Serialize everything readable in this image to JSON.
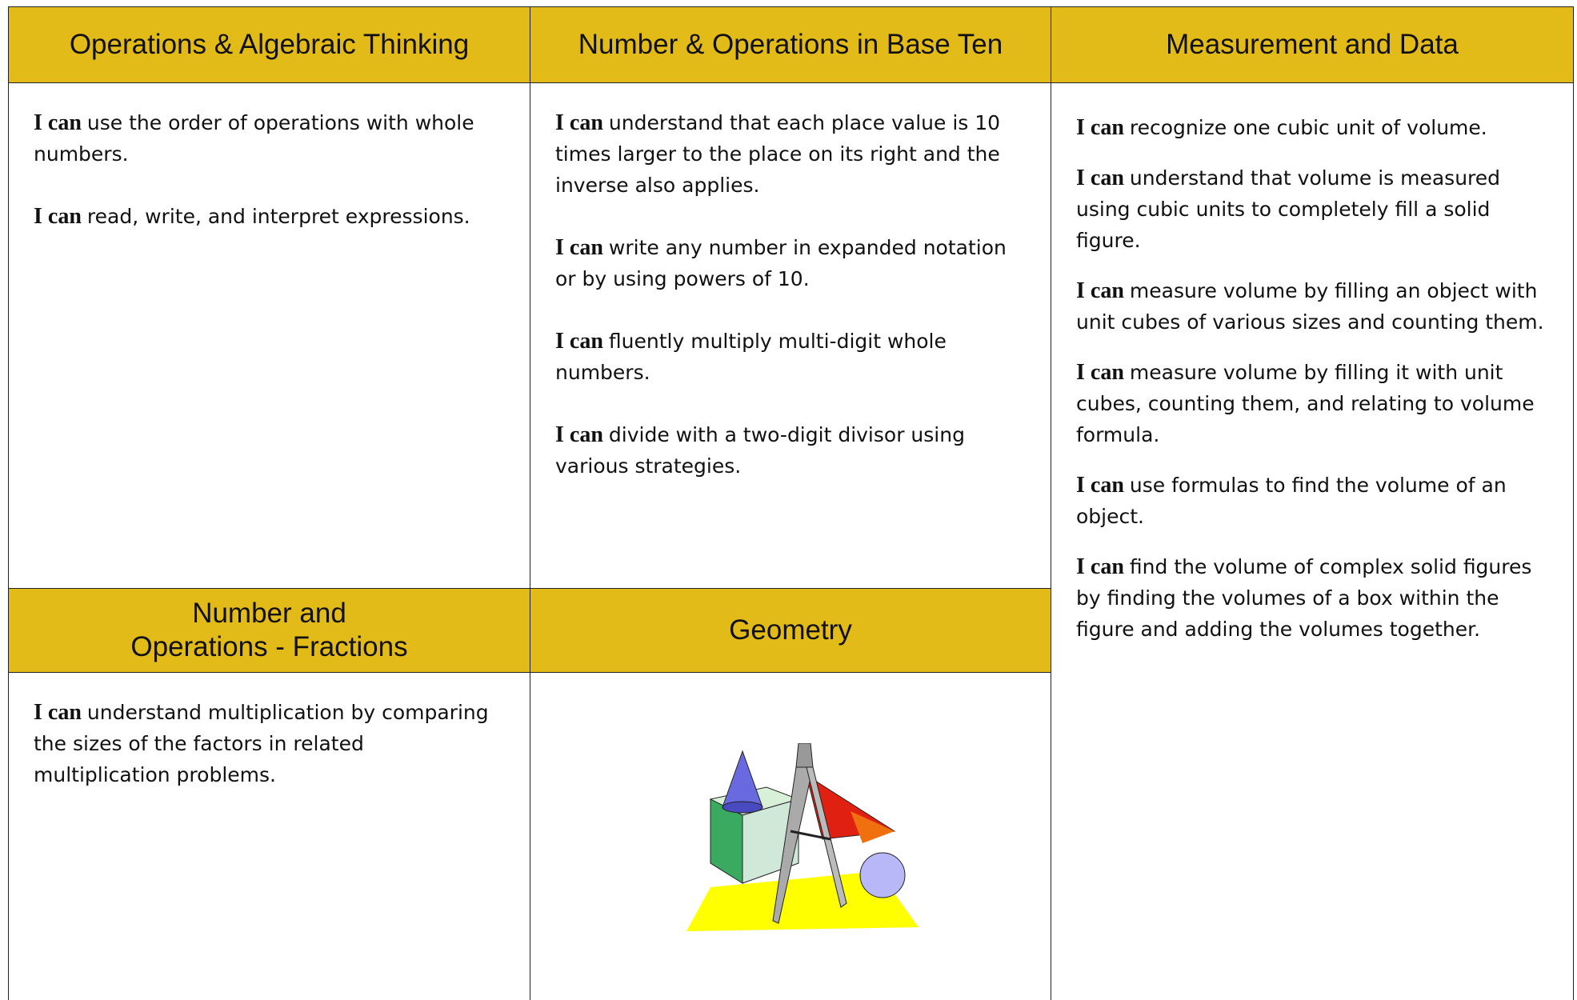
{
  "columns": [
    {
      "header": "Operations & Algebraic Thinking",
      "items": [
        {
          "lead": "I can",
          "text": "use the order of operations with whole numbers."
        },
        {
          "lead": "I can",
          "text": "read, write, and interpret expressions."
        }
      ]
    },
    {
      "header": "Number & Operations in Base Ten",
      "items": [
        {
          "lead": "I can",
          "text": "understand that each place value is 10 times larger to the place on its right and the inverse also applies."
        },
        {
          "lead": "I can",
          "text": "write any number in expanded notation or by using powers of 10."
        },
        {
          "lead": "I can",
          "text": "fluently multiply multi-digit whole numbers."
        },
        {
          "lead": "I can",
          "text": "divide with a two-digit divisor using various strategies."
        }
      ]
    },
    {
      "header": "Measurement and Data",
      "items": [
        {
          "lead": "I can",
          "text": "recognize one cubic unit of volume."
        },
        {
          "lead": "I can",
          "text": "understand that volume is measured using cubic units to completely fill a solid figure."
        },
        {
          "lead": "I can",
          "text": "measure volume by filling an object with unit cubes of various sizes and counting them."
        },
        {
          "lead": "I can",
          "text": "measure volume by filling it with unit cubes, counting them, and relating to volume formula."
        },
        {
          "lead": "I can",
          "text": "use formulas to find the volume of an object."
        },
        {
          "lead": "I can",
          "text": "find the volume of complex solid figures by finding the volumes of a box within the figure and adding the volumes together."
        }
      ]
    },
    {
      "header": "Number and Operations - Fractions",
      "items": [
        {
          "lead": "I can",
          "text": "understand multiplication by comparing the sizes of the factors in related multiplication problems."
        }
      ]
    },
    {
      "header": "Geometry",
      "items": []
    }
  ]
}
